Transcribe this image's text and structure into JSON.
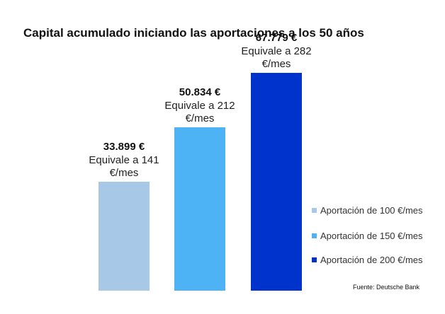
{
  "chart_data": {
    "type": "bar",
    "title": "Capital acumulado iniciando las aportaciones a los 50 años",
    "categories": [
      "Aportación de 100 €/mes",
      "Aportación de 150 €/mes",
      "Aportación de 200 €/mes"
    ],
    "values": [
      33899,
      50834,
      67779
    ],
    "value_labels": [
      "33.899 €",
      "50.834 €",
      "67.779 €"
    ],
    "equivalence_line1": [
      "Equivale a 141",
      "Equivale a 212",
      "Equivale a 282"
    ],
    "equivalence_line2": [
      "€/mes",
      "€/mes",
      "€/mes"
    ],
    "colors": [
      "#a8c8e8",
      "#4db3f5",
      "#0033cc"
    ],
    "legend_position": "right",
    "grid": false,
    "xlabel": "",
    "ylabel": "",
    "ylim": [
      0,
      80000
    ]
  },
  "source": "Fuente: Deutsche Bank"
}
